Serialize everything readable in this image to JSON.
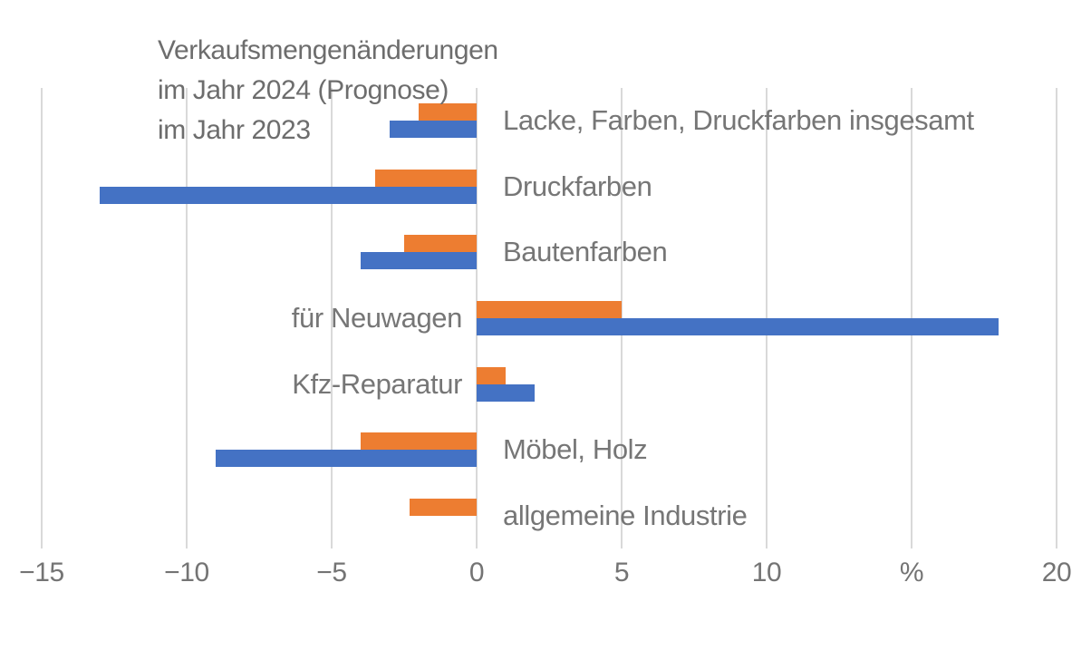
{
  "title": {
    "line1": "Verkaufsmengenänderungen",
    "line2": "im Jahr 2024 (Prognose)",
    "line3": "im Jahr 2023"
  },
  "chart_data": {
    "type": "bar",
    "orientation": "horizontal",
    "title": "Verkaufsmengenänderungen",
    "legend_entries": [
      "im Jahr 2024 (Prognose)",
      "im Jahr 2023"
    ],
    "legend_position": "title-lines-top-left",
    "grid": true,
    "categories": [
      "Lacke, Farben, Druckfarben insgesamt",
      "Druckfarben",
      "Bautenfarben",
      "für Neuwagen",
      "Kfz-Reparatur",
      "Möbel, Holz",
      "allgemeine Industrie"
    ],
    "series": [
      {
        "key": "2024",
        "name": "im Jahr 2024 (Prognose)",
        "color": "#ED7D31",
        "values": [
          -2,
          -3.5,
          -2.5,
          5,
          1,
          -4,
          -2.3
        ]
      },
      {
        "key": "2023",
        "name": "im Jahr 2023",
        "color": "#4472C4",
        "values": [
          -3,
          -13,
          -4,
          18,
          2,
          -9,
          0
        ]
      }
    ],
    "x_axis": {
      "min": -15,
      "max": 20,
      "tick_step": 5,
      "tick_labels": [
        "−15",
        "−10",
        "−5",
        "0",
        "5",
        "10",
        "%",
        "20"
      ],
      "unit": "%"
    }
  },
  "colors": {
    "bar_2024": "#ED7D31",
    "bar_2023": "#4472C4",
    "gridline": "#d9d9d9",
    "text": "#6d6d6d"
  }
}
